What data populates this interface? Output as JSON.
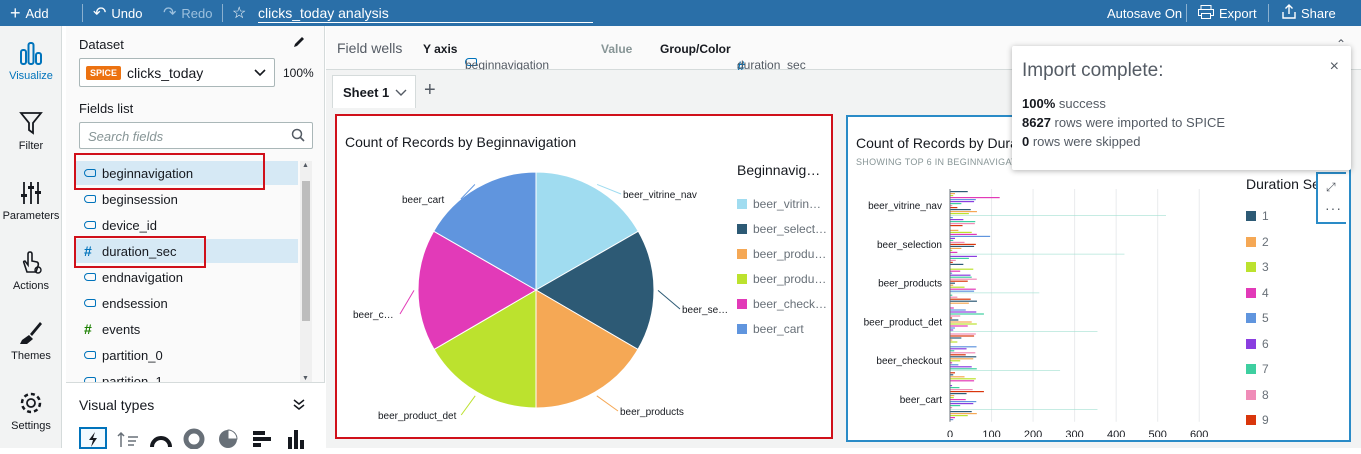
{
  "topbar": {
    "add": "Add",
    "undo": "Undo",
    "redo": "Redo",
    "analysis_title": "clicks_today analysis",
    "autosave": "Autosave On",
    "export": "Export",
    "share": "Share"
  },
  "rail": [
    {
      "label": "Visualize",
      "icon": "bar-chart-icon"
    },
    {
      "label": "Filter",
      "icon": "funnel-icon"
    },
    {
      "label": "Parameters",
      "icon": "sliders-icon"
    },
    {
      "label": "Actions",
      "icon": "pointer-icon"
    },
    {
      "label": "Themes",
      "icon": "brush-icon"
    },
    {
      "label": "Settings",
      "icon": "gear-icon"
    }
  ],
  "dataset": {
    "label": "Dataset",
    "badge": "SPICE",
    "name": "clicks_today",
    "percent": "100%"
  },
  "fields": {
    "label": "Fields list",
    "search_placeholder": "Search fields",
    "items": [
      {
        "name": "beginnavigation",
        "type": "dimension",
        "selected": true
      },
      {
        "name": "beginsession",
        "type": "dimension",
        "selected": false
      },
      {
        "name": "device_id",
        "type": "dimension",
        "selected": false
      },
      {
        "name": "duration_sec",
        "type": "measure",
        "selected": true
      },
      {
        "name": "endnavigation",
        "type": "dimension",
        "selected": false
      },
      {
        "name": "endsession",
        "type": "dimension",
        "selected": false
      },
      {
        "name": "events",
        "type": "measure",
        "selected": false
      },
      {
        "name": "partition_0",
        "type": "dimension",
        "selected": false
      },
      {
        "name": "partition_1",
        "type": "dimension",
        "selected": false
      }
    ]
  },
  "visual_types": {
    "label": "Visual types"
  },
  "wells": {
    "label": "Field wells",
    "y_axis_label": "Y axis",
    "y_axis_value": "beginnavigation",
    "value_label": "Value",
    "group_label": "Group/Color",
    "group_value": "duration_sec"
  },
  "sheet": {
    "tab": "Sheet 1"
  },
  "toast": {
    "title": "Import complete:",
    "line1_bold": "100%",
    "line1_rest": " success",
    "line2_bold": "8627",
    "line2_rest": " rows were imported to SPICE",
    "line3_bold": "0",
    "line3_rest": " rows were skipped"
  },
  "colors": {
    "topbar": "#2a6fa8",
    "highlight": "#d0101a",
    "selection": "#d6e9f5"
  },
  "chart_data": [
    {
      "type": "pie",
      "title": "Count of Records by Beginnavigation",
      "legend_title": "Beginnavig…",
      "categories": [
        "beer_vitrine_nav",
        "beer_selection",
        "beer_products",
        "beer_product_det",
        "beer_checkout",
        "beer_cart"
      ],
      "slice_labels": [
        "beer_vitrine_nav",
        "beer_se…",
        "beer_products",
        "beer_product_det",
        "beer_c…",
        "beer_cart"
      ],
      "legend_labels": [
        "beer_vitrin…",
        "beer_select…",
        "beer_produ…",
        "beer_produ…",
        "beer_check…",
        "beer_cart"
      ],
      "values": [
        16.7,
        16.7,
        16.6,
        16.6,
        16.7,
        16.7
      ],
      "colors": [
        "#a0dcf0",
        "#2d5a75",
        "#f5a855",
        "#bce22e",
        "#e23ab8",
        "#6095de"
      ]
    },
    {
      "type": "bar",
      "title": "Count of Records by Dura",
      "subtitle": "SHOWING TOP 6 IN BEGINNAVIGAT",
      "legend_title": "Duration Se",
      "categories": [
        "beer_vitrine_nav",
        "beer_selection",
        "beer_products",
        "beer_product_det",
        "beer_checkout",
        "beer_cart"
      ],
      "series_names": [
        "1",
        "2",
        "3",
        "4",
        "5",
        "6",
        "7",
        "8",
        "9"
      ],
      "series_colors": [
        "#2d5a75",
        "#f5a855",
        "#bce22e",
        "#e23ab8",
        "#6095de",
        "#8a3ee0",
        "#3ecfa0",
        "#f08cb8",
        "#d9360c"
      ],
      "max_per_category": [
        520,
        420,
        215,
        355,
        265,
        355
      ],
      "x_ticks": [
        "0",
        "100",
        "200",
        "300",
        "400",
        "500",
        "600"
      ],
      "xlim": [
        0,
        650
      ]
    }
  ]
}
